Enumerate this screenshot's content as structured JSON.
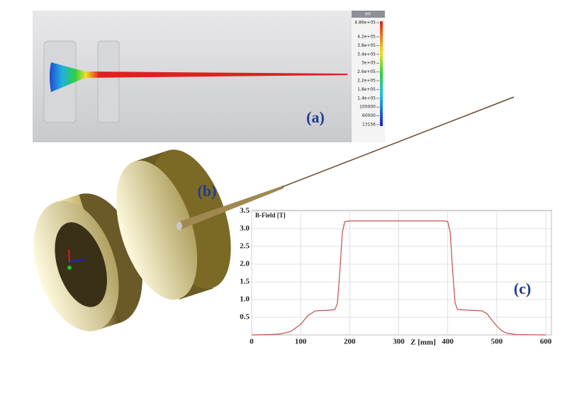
{
  "panels": {
    "a_label": "(a)",
    "b_label": "(b)",
    "c_label": "(c)"
  },
  "colorbar": {
    "unit": "eV",
    "labels": [
      "4.86e+05",
      "4.2e+05",
      "3.8e+05",
      "3.4e+05",
      "3e+05",
      "2.6e+05",
      "2.2e+05",
      "1.8e+05",
      "1.4e+05",
      "100000",
      "60000",
      "13156"
    ]
  },
  "chart_data": {
    "type": "line",
    "y_label": "B-Field [T]",
    "x_label": "Z [mm]",
    "xlim": [
      0,
      600
    ],
    "ylim": [
      0,
      3.5
    ],
    "xticks": [
      0,
      100,
      200,
      300,
      400,
      500,
      600
    ],
    "yticks": [
      0.5,
      {
        "value": 1,
        "label": "1.0"
      },
      1.5,
      {
        "value": 2,
        "label": "2.0"
      },
      2.5,
      {
        "value": 3,
        "label": "3.0"
      },
      3.5
    ],
    "grid": true,
    "x": [
      0,
      40,
      60,
      80,
      100,
      115,
      130,
      160,
      170,
      175,
      180,
      185,
      190,
      200,
      300,
      395,
      400,
      405,
      410,
      415,
      420,
      440,
      470,
      480,
      490,
      500,
      510,
      520,
      540,
      600
    ],
    "series": [
      {
        "color": "#c0504d",
        "values": [
          0,
          0.01,
          0.03,
          0.1,
          0.3,
          0.55,
          0.68,
          0.7,
          0.72,
          0.9,
          1.8,
          2.9,
          3.2,
          3.22,
          3.22,
          3.22,
          3.2,
          2.9,
          1.8,
          0.9,
          0.72,
          0.7,
          0.68,
          0.6,
          0.42,
          0.25,
          0.12,
          0.05,
          0.01,
          0
        ]
      }
    ]
  }
}
